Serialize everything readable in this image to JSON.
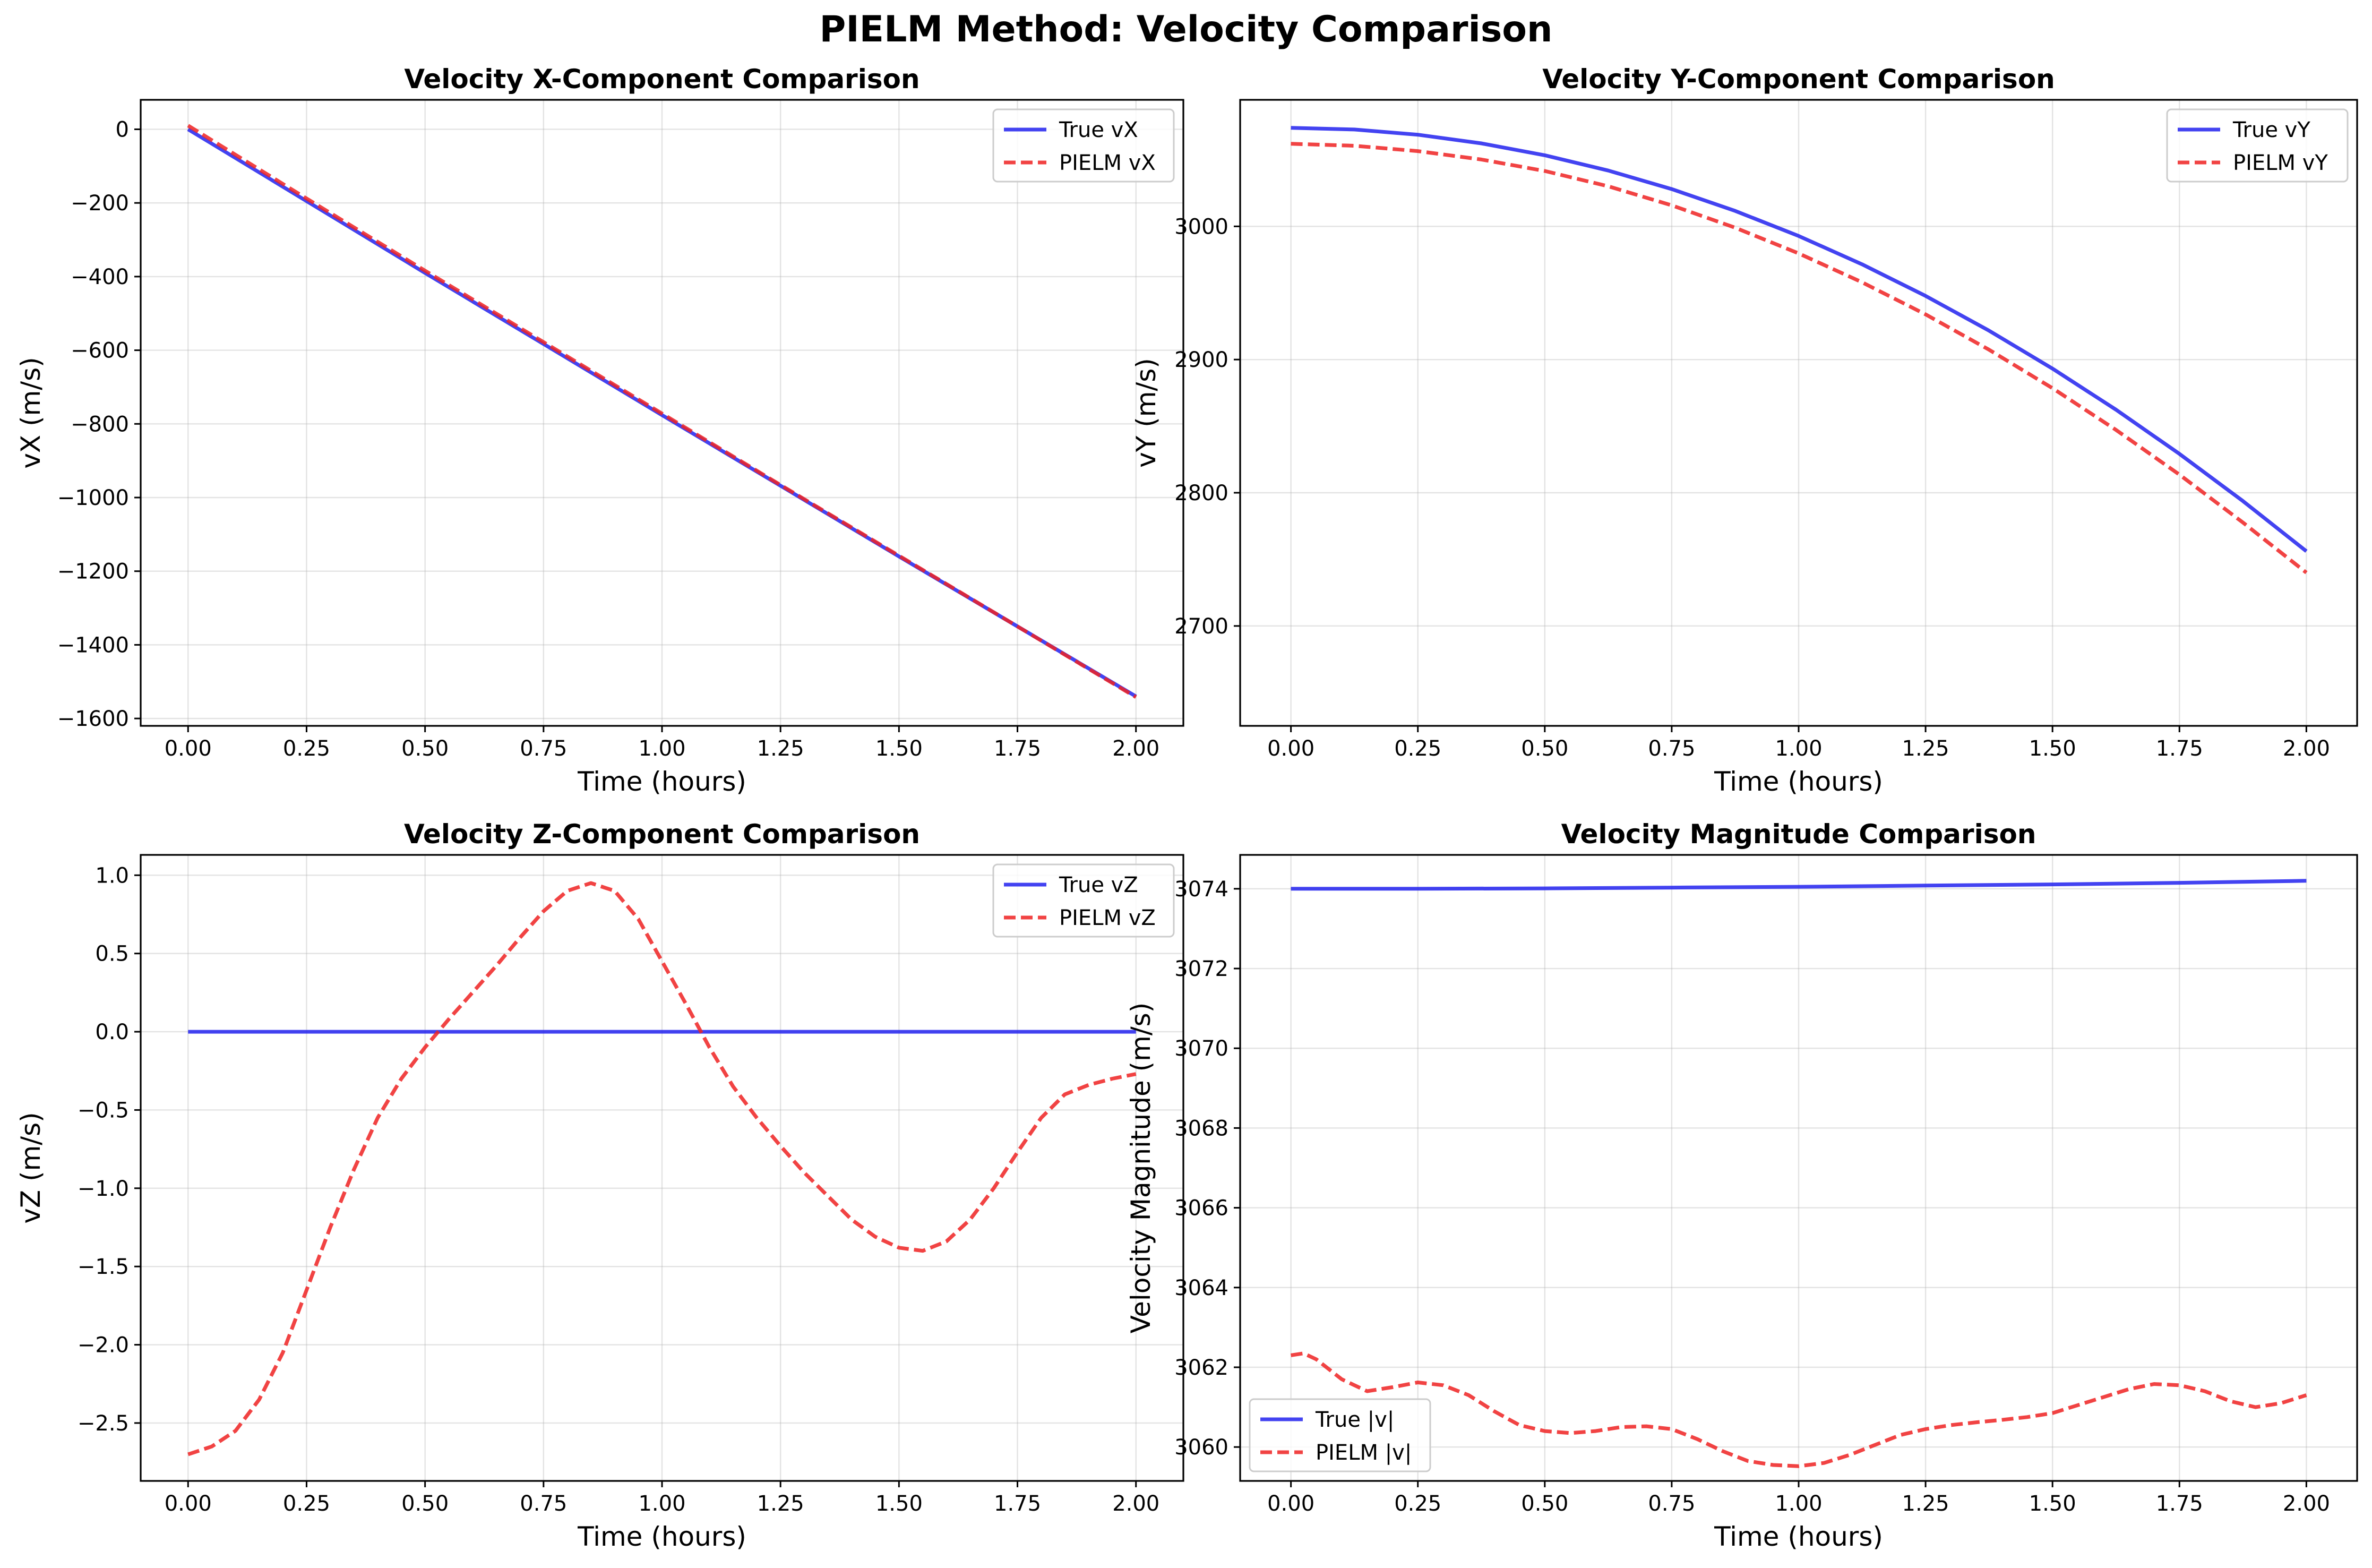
{
  "figure": {
    "title": "PIELM Method: Velocity Comparison"
  },
  "colors": {
    "true_line": "#2222ee",
    "pielm_line": "#ee2222"
  },
  "chart_data": [
    {
      "type": "line",
      "title": "Velocity X-Component Comparison",
      "xlabel": "Time (hours)",
      "ylabel": "vX (m/s)",
      "xlim": [
        -0.1,
        2.1
      ],
      "ylim": [
        -1620,
        80
      ],
      "xticks": [
        0.0,
        0.25,
        0.5,
        0.75,
        1.0,
        1.25,
        1.5,
        1.75,
        2.0
      ],
      "xtick_labels": [
        "0.00",
        "0.25",
        "0.50",
        "0.75",
        "1.00",
        "1.25",
        "1.50",
        "1.75",
        "2.00"
      ],
      "yticks": [
        0,
        -200,
        -400,
        -600,
        -800,
        -1000,
        -1200,
        -1400,
        -1600
      ],
      "ytick_labels": [
        "0",
        "−200",
        "−400",
        "−600",
        "−800",
        "−1000",
        "−1200",
        "−1400",
        "−1600"
      ],
      "grid": true,
      "legend_position": "top-right",
      "series": [
        {
          "name": "True vX",
          "style": "solid",
          "x": [
            0.0,
            0.25,
            0.5,
            0.75,
            1.0,
            1.25,
            1.5,
            1.75,
            2.0
          ],
          "y": [
            0,
            -195,
            -390,
            -583,
            -776,
            -968,
            -1160,
            -1350,
            -1540
          ]
        },
        {
          "name": "PIELM vX",
          "style": "dashed",
          "x": [
            0.0,
            0.25,
            0.5,
            0.75,
            1.0,
            1.25,
            1.5,
            1.75,
            2.0
          ],
          "y": [
            10,
            -188,
            -384,
            -578,
            -772,
            -966,
            -1158,
            -1350,
            -1542
          ]
        }
      ]
    },
    {
      "type": "line",
      "title": "Velocity Y-Component Comparison",
      "xlabel": "Time (hours)",
      "ylabel": "vY (m/s)",
      "xlim": [
        -0.1,
        2.1
      ],
      "ylim": [
        2625,
        3095
      ],
      "xticks": [
        0.0,
        0.25,
        0.5,
        0.75,
        1.0,
        1.25,
        1.5,
        1.75,
        2.0
      ],
      "xtick_labels": [
        "0.00",
        "0.25",
        "0.50",
        "0.75",
        "1.00",
        "1.25",
        "1.50",
        "1.75",
        "2.00"
      ],
      "yticks": [
        2700,
        2800,
        2900,
        3000
      ],
      "ytick_labels": [
        "2700",
        "2800",
        "2900",
        "3000"
      ],
      "grid": true,
      "legend_position": "top-right",
      "series": [
        {
          "name": "True vY",
          "style": "solid",
          "x": [
            0.0,
            0.125,
            0.25,
            0.375,
            0.5,
            0.625,
            0.75,
            0.875,
            1.0,
            1.125,
            1.25,
            1.375,
            1.5,
            1.625,
            1.75,
            1.875,
            2.0
          ],
          "y": [
            3074,
            3072.7,
            3068.8,
            3062.3,
            3053.4,
            3041.9,
            3028.0,
            3011.6,
            2992.8,
            2971.5,
            2947.8,
            2921.7,
            2893.2,
            2862.4,
            2829.2,
            2793.8,
            2756.1
          ]
        },
        {
          "name": "PIELM vY",
          "style": "dashed",
          "x": [
            0.0,
            0.125,
            0.25,
            0.375,
            0.5,
            0.625,
            0.75,
            0.875,
            1.0,
            1.125,
            1.25,
            1.375,
            1.5,
            1.625,
            1.75,
            1.875,
            2.0
          ],
          "y": [
            3062,
            3060.5,
            3056.5,
            3050.2,
            3041.6,
            3030.1,
            3015.8,
            2999.0,
            2979.7,
            2958.0,
            2933.9,
            2907.4,
            2878.5,
            2847.2,
            2813.6,
            2777.7,
            2740.0
          ]
        }
      ]
    },
    {
      "type": "line",
      "title": "Velocity Z-Component Comparison",
      "xlabel": "Time (hours)",
      "ylabel": "vZ (m/s)",
      "xlim": [
        -0.1,
        2.1
      ],
      "ylim": [
        -2.87,
        1.13
      ],
      "xticks": [
        0.0,
        0.25,
        0.5,
        0.75,
        1.0,
        1.25,
        1.5,
        1.75,
        2.0
      ],
      "xtick_labels": [
        "0.00",
        "0.25",
        "0.50",
        "0.75",
        "1.00",
        "1.25",
        "1.50",
        "1.75",
        "2.00"
      ],
      "yticks": [
        1.0,
        0.5,
        0.0,
        -0.5,
        -1.0,
        -1.5,
        -2.0,
        -2.5
      ],
      "ytick_labels": [
        "1.0",
        "0.5",
        "0.0",
        "−0.5",
        "−1.0",
        "−1.5",
        "−2.0",
        "−2.5"
      ],
      "grid": true,
      "legend_position": "top-right",
      "series": [
        {
          "name": "True vZ",
          "style": "solid",
          "x": [
            0.0,
            2.0
          ],
          "y": [
            0.0,
            0.0
          ]
        },
        {
          "name": "PIELM vZ",
          "style": "dashed",
          "x": [
            0.0,
            0.05,
            0.1,
            0.15,
            0.2,
            0.25,
            0.3,
            0.35,
            0.4,
            0.45,
            0.5,
            0.55,
            0.6,
            0.65,
            0.7,
            0.75,
            0.8,
            0.85,
            0.9,
            0.95,
            1.0,
            1.05,
            1.1,
            1.15,
            1.2,
            1.25,
            1.3,
            1.35,
            1.4,
            1.45,
            1.5,
            1.55,
            1.6,
            1.65,
            1.7,
            1.75,
            1.8,
            1.85,
            1.9,
            1.95,
            2.0
          ],
          "y": [
            -2.7,
            -2.65,
            -2.55,
            -2.35,
            -2.05,
            -1.65,
            -1.25,
            -0.88,
            -0.55,
            -0.3,
            -0.1,
            0.08,
            0.25,
            0.42,
            0.6,
            0.77,
            0.9,
            0.95,
            0.9,
            0.72,
            0.45,
            0.18,
            -0.1,
            -0.35,
            -0.55,
            -0.73,
            -0.9,
            -1.05,
            -1.2,
            -1.31,
            -1.38,
            -1.4,
            -1.34,
            -1.2,
            -1.0,
            -0.77,
            -0.55,
            -0.4,
            -0.34,
            -0.3,
            -0.27
          ]
        }
      ]
    },
    {
      "type": "line",
      "title": "Velocity Magnitude Comparison",
      "xlabel": "Time (hours)",
      "ylabel": "Velocity Magnitude (m/s)",
      "xlim": [
        -0.1,
        2.1
      ],
      "ylim": [
        3059.15,
        3074.85
      ],
      "xticks": [
        0.0,
        0.25,
        0.5,
        0.75,
        1.0,
        1.25,
        1.5,
        1.75,
        2.0
      ],
      "xtick_labels": [
        "0.00",
        "0.25",
        "0.50",
        "0.75",
        "1.00",
        "1.25",
        "1.50",
        "1.75",
        "2.00"
      ],
      "yticks": [
        3060,
        3062,
        3064,
        3066,
        3068,
        3070,
        3072,
        3074
      ],
      "ytick_labels": [
        "3060",
        "3062",
        "3064",
        "3066",
        "3068",
        "3070",
        "3072",
        "3074"
      ],
      "grid": true,
      "legend_position": "bottom-left",
      "series": [
        {
          "name": "True |v|",
          "style": "solid",
          "x": [
            0.0,
            0.25,
            0.5,
            0.75,
            1.0,
            1.25,
            1.5,
            1.75,
            2.0
          ],
          "y": [
            3074.0,
            3074.0,
            3074.01,
            3074.03,
            3074.05,
            3074.08,
            3074.11,
            3074.15,
            3074.2
          ]
        },
        {
          "name": "PIELM |v|",
          "style": "dashed",
          "x": [
            0.0,
            0.025,
            0.05,
            0.1,
            0.15,
            0.2,
            0.25,
            0.3,
            0.35,
            0.4,
            0.45,
            0.5,
            0.55,
            0.6,
            0.65,
            0.7,
            0.75,
            0.8,
            0.85,
            0.9,
            0.95,
            1.0,
            1.05,
            1.1,
            1.15,
            1.2,
            1.25,
            1.3,
            1.35,
            1.4,
            1.45,
            1.5,
            1.55,
            1.6,
            1.65,
            1.7,
            1.75,
            1.8,
            1.85,
            1.9,
            1.95,
            2.0
          ],
          "y": [
            3062.3,
            3062.35,
            3062.2,
            3061.7,
            3061.4,
            3061.5,
            3061.62,
            3061.55,
            3061.3,
            3060.9,
            3060.55,
            3060.4,
            3060.35,
            3060.4,
            3060.5,
            3060.52,
            3060.45,
            3060.2,
            3059.9,
            3059.65,
            3059.55,
            3059.52,
            3059.6,
            3059.8,
            3060.05,
            3060.3,
            3060.45,
            3060.55,
            3060.62,
            3060.68,
            3060.75,
            3060.85,
            3061.05,
            3061.25,
            3061.45,
            3061.58,
            3061.55,
            3061.4,
            3061.15,
            3061.0,
            3061.1,
            3061.3
          ]
        }
      ]
    }
  ]
}
